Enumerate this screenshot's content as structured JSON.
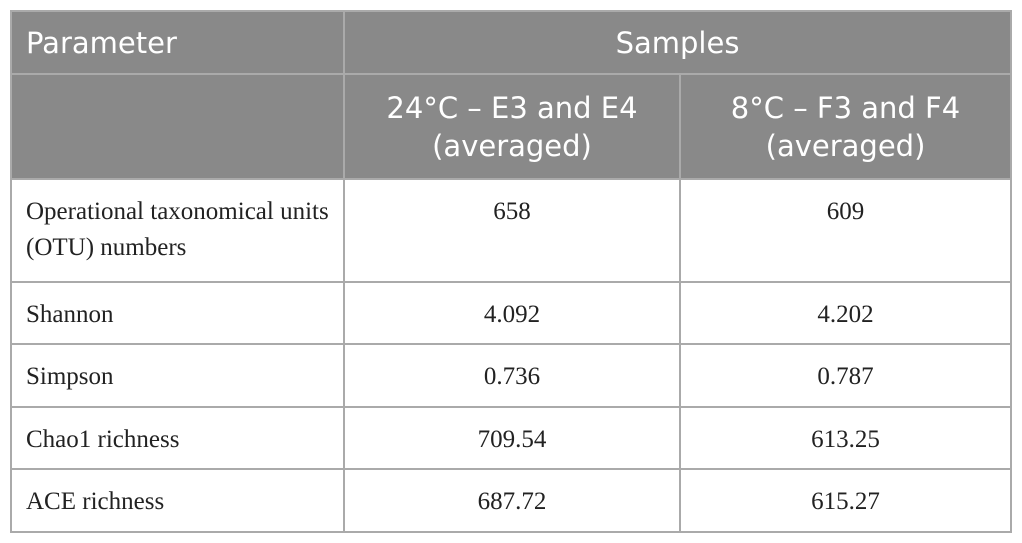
{
  "table": {
    "header": [
      "Parameter",
      "Samples"
    ],
    "subheader": [
      "24°C – E3 and E4 (averaged)",
      "8°C – F3 and F4 (averaged)"
    ],
    "rows": [
      [
        "Operational taxonomical units (OTU) numbers",
        "658",
        "609"
      ],
      [
        "Shannon",
        "4.092",
        "4.202"
      ],
      [
        "Simpson",
        "0.736",
        "0.787"
      ],
      [
        "Chao1 richness",
        "709.54",
        "613.25"
      ],
      [
        "ACE richness",
        "687.72",
        "615.27"
      ]
    ]
  }
}
